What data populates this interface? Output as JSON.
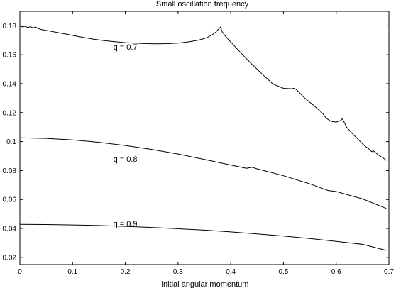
{
  "chart_data": {
    "type": "line",
    "title": "Small oscillation frequency",
    "xlabel": "initial angular momentum",
    "ylabel": "",
    "xlim": [
      0,
      0.7
    ],
    "ylim": [
      0.015,
      0.19
    ],
    "xticks": [
      0,
      0.1,
      0.2,
      0.3,
      0.4,
      0.5,
      0.6,
      0.7
    ],
    "xtick_labels": [
      "0",
      "0.1",
      "0.2",
      "0.3",
      "0.4",
      "0.5",
      "0.6",
      "0.7"
    ],
    "yticks": [
      0.02,
      0.04,
      0.06,
      0.08,
      0.1,
      0.12,
      0.14,
      0.16,
      0.18
    ],
    "ytick_labels": [
      "0.02",
      "0.04",
      "0.06",
      "0.08",
      "0.1",
      "0.12",
      "0.14",
      "0.16",
      "0.18"
    ],
    "grid": false,
    "legend": "none",
    "series": [
      {
        "name": "q = 0.7",
        "label_at": [
          0.2,
          0.1655
        ],
        "x": [
          0,
          0.005,
          0.01,
          0.015,
          0.02,
          0.025,
          0.03,
          0.035,
          0.04,
          0.06,
          0.08,
          0.1,
          0.12,
          0.14,
          0.16,
          0.18,
          0.2,
          0.22,
          0.24,
          0.26,
          0.28,
          0.3,
          0.32,
          0.34,
          0.355,
          0.365,
          0.372,
          0.377,
          0.381,
          0.383,
          0.385,
          0.39,
          0.4,
          0.42,
          0.44,
          0.46,
          0.47,
          0.48,
          0.5,
          0.515,
          0.52,
          0.525,
          0.54,
          0.56,
          0.575,
          0.58,
          0.585,
          0.59,
          0.6,
          0.608,
          0.612,
          0.615,
          0.62,
          0.63,
          0.64,
          0.65,
          0.655,
          0.66,
          0.663,
          0.666,
          0.668,
          0.67,
          0.68,
          0.69,
          0.695
        ],
        "y": [
          0.18,
          0.1792,
          0.1797,
          0.1788,
          0.1794,
          0.1786,
          0.1791,
          0.1781,
          0.1775,
          0.1762,
          0.1748,
          0.1734,
          0.172,
          0.1708,
          0.1698,
          0.169,
          0.1684,
          0.168,
          0.1677,
          0.1676,
          0.1677,
          0.1681,
          0.1689,
          0.1702,
          0.1718,
          0.1738,
          0.1758,
          0.1778,
          0.1792,
          0.1765,
          0.1752,
          0.1728,
          0.1688,
          0.161,
          0.1535,
          0.1465,
          0.1432,
          0.1398,
          0.1368,
          0.1365,
          0.1368,
          0.1358,
          0.1302,
          0.1242,
          0.1192,
          0.1166,
          0.1152,
          0.114,
          0.1135,
          0.1145,
          0.1158,
          0.1135,
          0.1098,
          0.1058,
          0.1022,
          0.0985,
          0.0968,
          0.0955,
          0.0945,
          0.0935,
          0.093,
          0.0938,
          0.0908,
          0.0885,
          0.087
        ]
      },
      {
        "name": "q = 0.8",
        "label_at": [
          0.2,
          0.088
        ],
        "x": [
          0,
          0.05,
          0.1,
          0.15,
          0.2,
          0.25,
          0.3,
          0.35,
          0.4,
          0.43,
          0.44,
          0.45,
          0.5,
          0.55,
          0.58,
          0.585,
          0.6,
          0.65,
          0.695
        ],
        "y": [
          0.1026,
          0.1022,
          0.1012,
          0.0995,
          0.0973,
          0.0946,
          0.0914,
          0.0877,
          0.0838,
          0.0815,
          0.0823,
          0.0812,
          0.0764,
          0.0708,
          0.0668,
          0.0662,
          0.0655,
          0.0604,
          0.0538
        ]
      },
      {
        "name": "q = 0.9",
        "label_at": [
          0.2,
          0.0435
        ],
        "x": [
          0,
          0.05,
          0.1,
          0.15,
          0.2,
          0.25,
          0.3,
          0.35,
          0.4,
          0.45,
          0.5,
          0.55,
          0.6,
          0.65,
          0.695
        ],
        "y": [
          0.0428,
          0.0427,
          0.0424,
          0.042,
          0.0414,
          0.0407,
          0.0398,
          0.0388,
          0.0376,
          0.0362,
          0.0347,
          0.033,
          0.0311,
          0.029,
          0.0248
        ]
      }
    ]
  }
}
